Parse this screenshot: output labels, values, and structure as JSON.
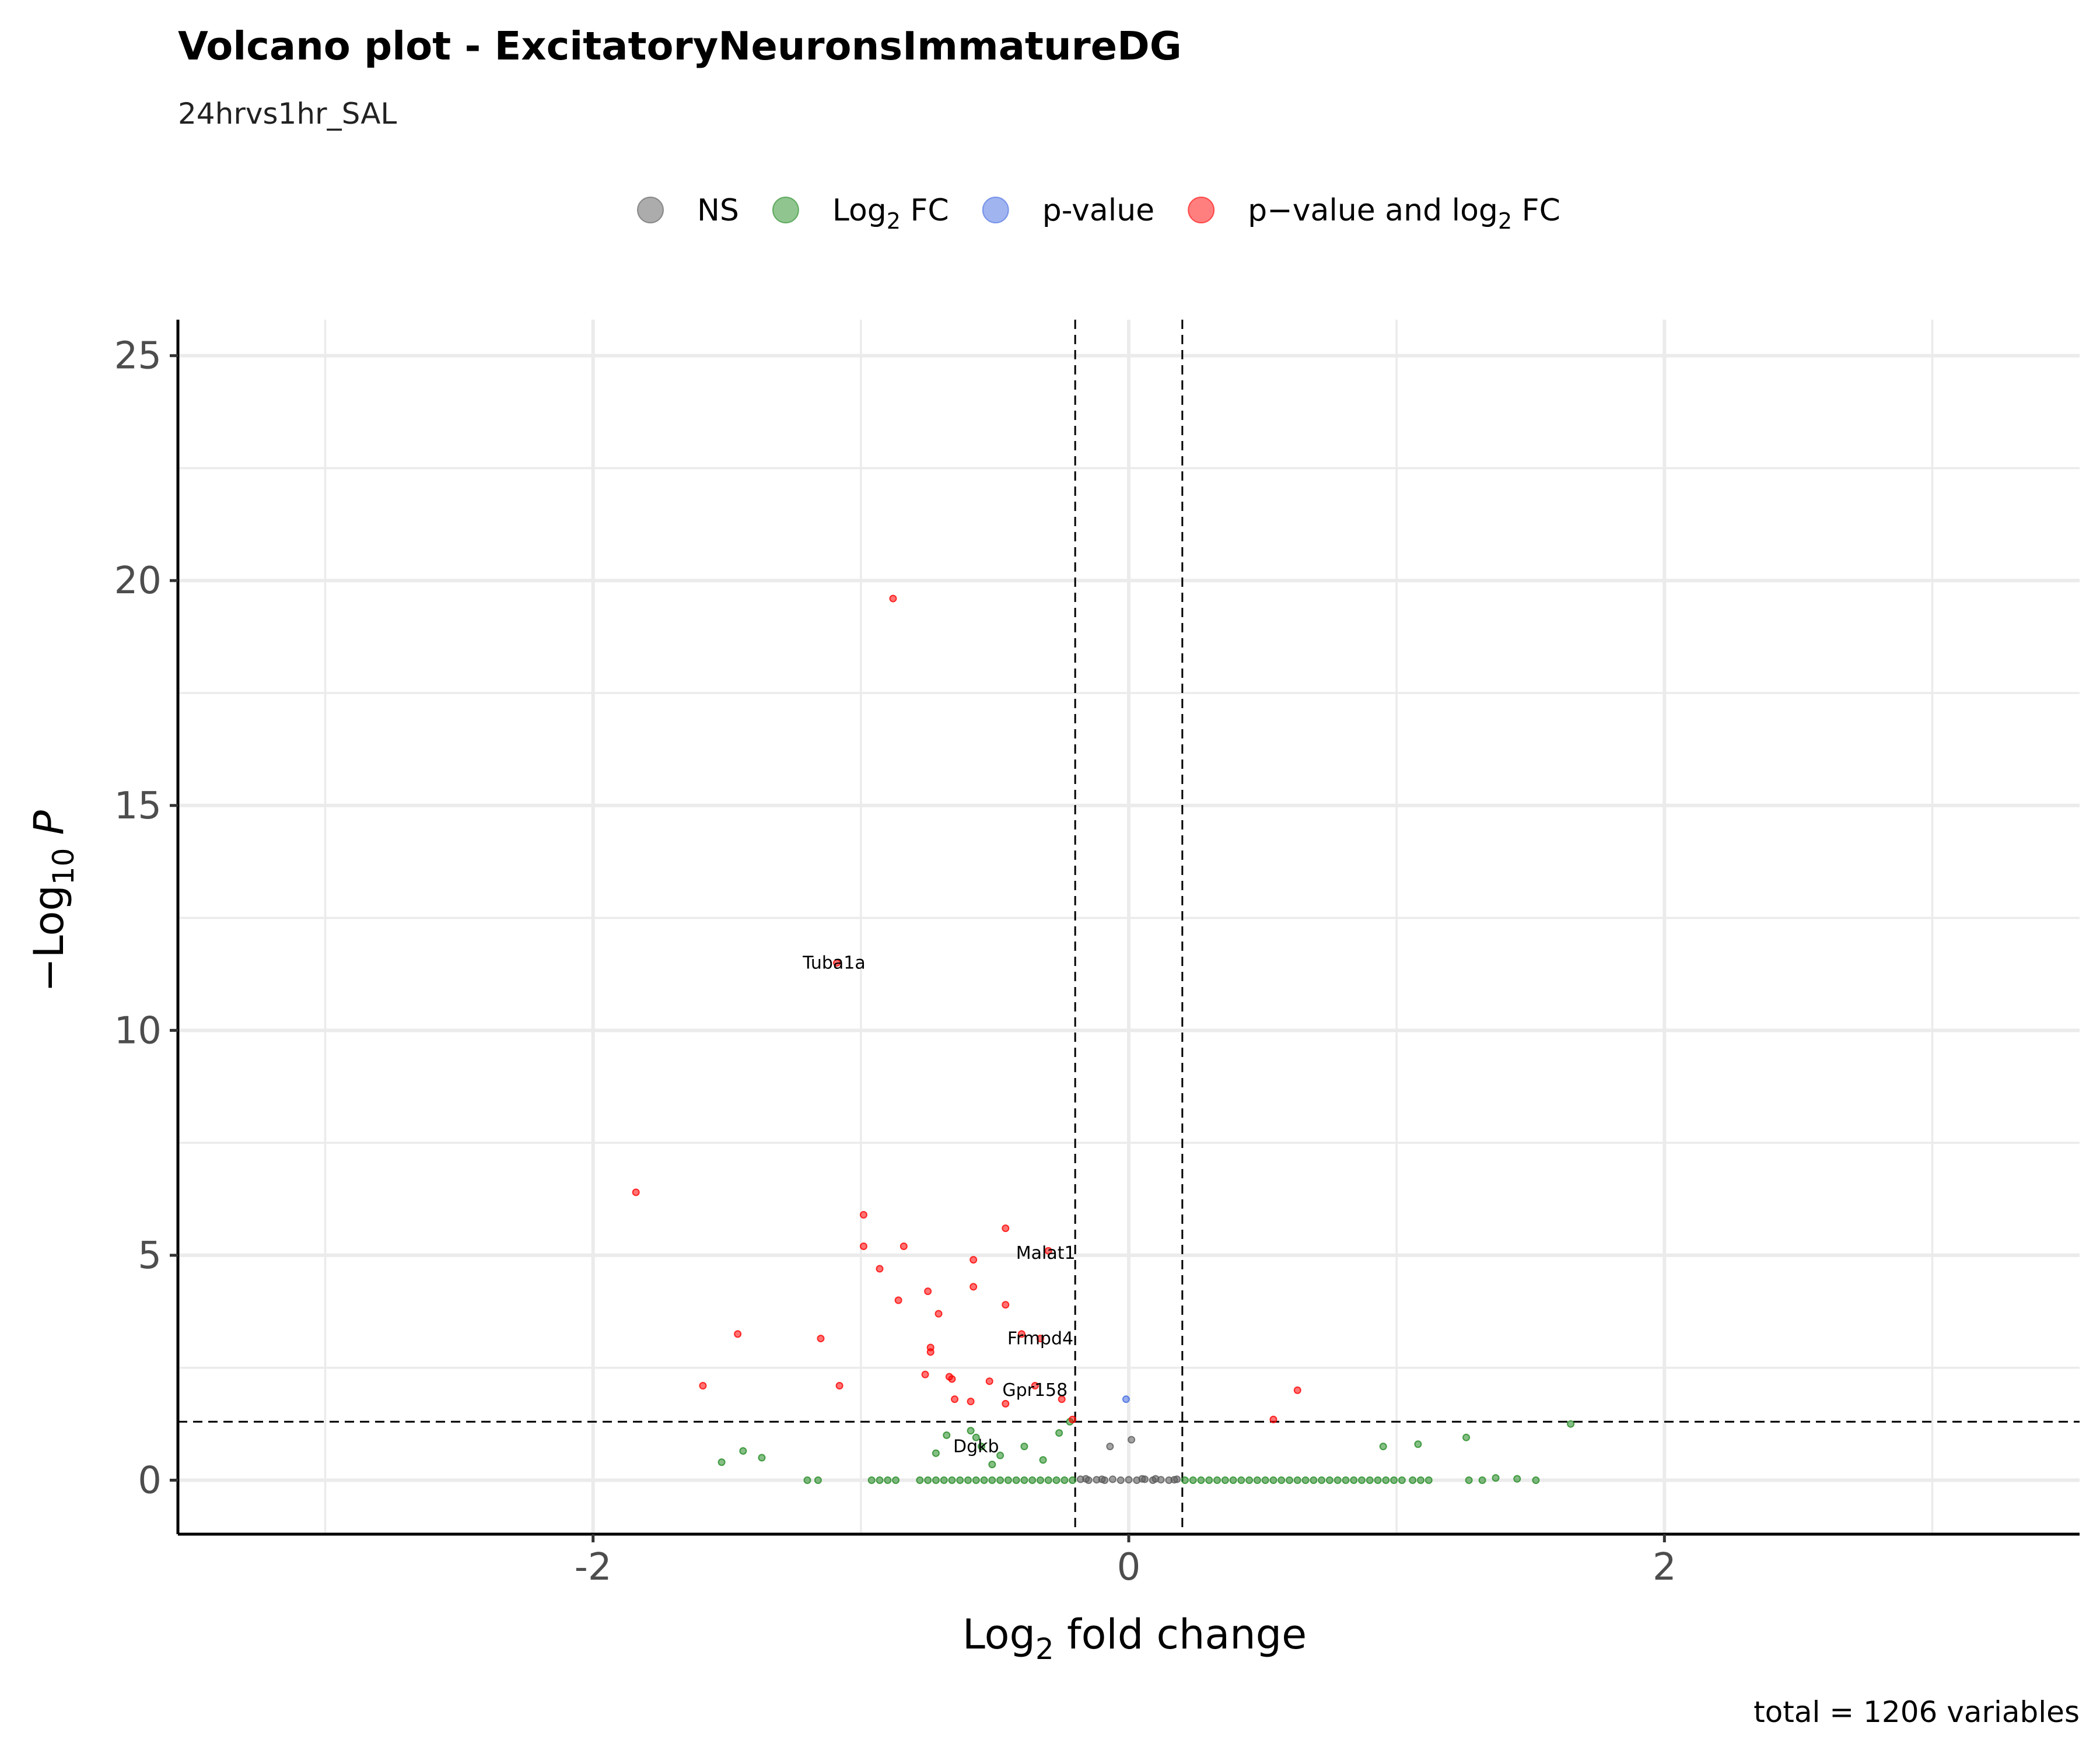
{
  "colors": {
    "NS": "#5a5a5a",
    "Log2FC": "#228b22",
    "pvalue": "#4169e1",
    "both": "#ff0000"
  },
  "chart_data": {
    "type": "scatter",
    "title": "Volcano plot - ExcitatoryNeuronsImmatureDG",
    "subtitle": "24hrvs1hr_SAL",
    "caption": "total = 1206 variables",
    "xlabel": {
      "main": "Log",
      "sub": "2",
      "rest": " fold change"
    },
    "ylabel": {
      "pre": "−Log",
      "sub": "10",
      "italic": "P"
    },
    "xlim": [
      -3.55,
      3.55
    ],
    "ylim": [
      -1.2,
      25.8
    ],
    "x_ticks": [
      -2,
      0,
      2
    ],
    "x_tick_labels": [
      "-2",
      "0",
      "2"
    ],
    "x_minor_ticks": [
      -3,
      -1,
      1,
      3
    ],
    "y_ticks": [
      0,
      5,
      10,
      15,
      20,
      25
    ],
    "y_tick_labels": [
      "0",
      "5",
      "10",
      "15",
      "20",
      "25"
    ],
    "y_minor_ticks": [
      2.5,
      7.5,
      12.5,
      17.5,
      22.5
    ],
    "grid": true,
    "legend_position": "top",
    "cutoffs": {
      "fc": 0.2,
      "pvalue_log10": 1.3
    },
    "legend": [
      {
        "key": "NS",
        "parts": [
          {
            "text": "NS"
          }
        ]
      },
      {
        "key": "Log2FC",
        "parts": [
          {
            "text": "Log"
          },
          {
            "text": "2",
            "sub": true
          },
          {
            "text": " FC"
          }
        ]
      },
      {
        "key": "pvalue",
        "parts": [
          {
            "text": "p-value"
          }
        ]
      },
      {
        "key": "both",
        "parts": [
          {
            "text": "p−value and log"
          },
          {
            "text": "2",
            "sub": true
          },
          {
            "text": " FC"
          }
        ]
      }
    ],
    "series": [
      {
        "key": "both",
        "points": [
          [
            -0.88,
            19.6
          ],
          [
            -1.84,
            6.4
          ],
          [
            -1.09,
            11.5
          ],
          [
            -0.99,
            5.9
          ],
          [
            -0.99,
            5.2
          ],
          [
            -0.84,
            5.2
          ],
          [
            -0.46,
            5.6
          ],
          [
            -0.93,
            4.7
          ],
          [
            -0.58,
            4.9
          ],
          [
            -0.3,
            5.1
          ],
          [
            -0.75,
            4.2
          ],
          [
            -0.58,
            4.3
          ],
          [
            -0.86,
            4.0
          ],
          [
            -0.46,
            3.9
          ],
          [
            -0.71,
            3.7
          ],
          [
            -1.46,
            3.25
          ],
          [
            -1.15,
            3.15
          ],
          [
            -0.4,
            3.25
          ],
          [
            -0.33,
            3.15
          ],
          [
            -0.74,
            2.95
          ],
          [
            -0.74,
            2.85
          ],
          [
            -1.59,
            2.1
          ],
          [
            -1.08,
            2.1
          ],
          [
            -0.76,
            2.35
          ],
          [
            -0.67,
            2.3
          ],
          [
            -0.66,
            2.25
          ],
          [
            -0.52,
            2.2
          ],
          [
            -0.35,
            2.1
          ],
          [
            -0.65,
            1.8
          ],
          [
            -0.59,
            1.75
          ],
          [
            -0.46,
            1.7
          ],
          [
            -0.25,
            1.8
          ],
          [
            0.63,
            2.0
          ],
          [
            0.54,
            1.35
          ],
          [
            -0.21,
            1.35
          ]
        ]
      },
      {
        "key": "pvalue",
        "points": [
          [
            -0.01,
            1.8
          ]
        ]
      },
      {
        "key": "NS",
        "points": [
          [
            -0.07,
            0.75
          ],
          [
            0.01,
            0.9
          ],
          [
            -0.18,
            0.02
          ],
          [
            -0.15,
            0.0
          ],
          [
            -0.12,
            0.01
          ],
          [
            -0.09,
            0.0
          ],
          [
            -0.06,
            0.02
          ],
          [
            -0.03,
            0.0
          ],
          [
            0.0,
            0.01
          ],
          [
            0.03,
            0.0
          ],
          [
            0.06,
            0.02
          ],
          [
            0.09,
            0.0
          ],
          [
            0.12,
            0.01
          ],
          [
            0.15,
            0.0
          ],
          [
            0.18,
            0.02
          ],
          [
            -0.16,
            0.03
          ],
          [
            -0.1,
            0.02
          ],
          [
            0.05,
            0.03
          ],
          [
            0.1,
            0.03
          ],
          [
            0.17,
            0.01
          ]
        ]
      },
      {
        "key": "Log2FC",
        "points": [
          [
            1.65,
            1.25
          ],
          [
            1.26,
            0.95
          ],
          [
            1.08,
            0.8
          ],
          [
            0.95,
            0.75
          ],
          [
            -0.22,
            1.3
          ],
          [
            -0.26,
            1.05
          ],
          [
            -0.59,
            1.1
          ],
          [
            -0.68,
            1.0
          ],
          [
            -0.57,
            0.95
          ],
          [
            -0.39,
            0.75
          ],
          [
            -0.55,
            0.75
          ],
          [
            -0.72,
            0.6
          ],
          [
            -0.48,
            0.55
          ],
          [
            -0.32,
            0.45
          ],
          [
            -0.51,
            0.35
          ],
          [
            -1.37,
            0.5
          ],
          [
            -1.44,
            0.65
          ],
          [
            -1.52,
            0.4
          ],
          [
            -1.2,
            0.0
          ],
          [
            -1.16,
            0.0
          ],
          [
            -0.96,
            0.0
          ],
          [
            -0.93,
            0.0
          ],
          [
            -0.9,
            0.0
          ],
          [
            -0.87,
            0.0
          ],
          [
            -0.78,
            0.0
          ],
          [
            -0.75,
            0.0
          ],
          [
            -0.72,
            0.0
          ],
          [
            -0.69,
            0.0
          ],
          [
            -0.66,
            0.0
          ],
          [
            -0.63,
            0.0
          ],
          [
            -0.6,
            0.0
          ],
          [
            -0.57,
            0.0
          ],
          [
            -0.54,
            0.0
          ],
          [
            -0.51,
            0.0
          ],
          [
            -0.48,
            0.0
          ],
          [
            -0.45,
            0.0
          ],
          [
            -0.42,
            0.0
          ],
          [
            -0.39,
            0.0
          ],
          [
            -0.36,
            0.0
          ],
          [
            -0.33,
            0.0
          ],
          [
            -0.3,
            0.0
          ],
          [
            -0.27,
            0.0
          ],
          [
            -0.24,
            0.0
          ],
          [
            -0.21,
            0.0
          ],
          [
            0.21,
            0.0
          ],
          [
            0.24,
            0.0
          ],
          [
            0.27,
            0.0
          ],
          [
            0.3,
            0.0
          ],
          [
            0.33,
            0.0
          ],
          [
            0.36,
            0.0
          ],
          [
            0.39,
            0.0
          ],
          [
            0.42,
            0.0
          ],
          [
            0.45,
            0.0
          ],
          [
            0.48,
            0.0
          ],
          [
            0.51,
            0.0
          ],
          [
            0.54,
            0.0
          ],
          [
            0.57,
            0.0
          ],
          [
            0.6,
            0.0
          ],
          [
            0.63,
            0.0
          ],
          [
            0.66,
            0.0
          ],
          [
            0.69,
            0.0
          ],
          [
            0.72,
            0.0
          ],
          [
            0.75,
            0.0
          ],
          [
            0.78,
            0.0
          ],
          [
            0.81,
            0.0
          ],
          [
            0.84,
            0.0
          ],
          [
            0.87,
            0.0
          ],
          [
            0.9,
            0.0
          ],
          [
            0.93,
            0.0
          ],
          [
            0.96,
            0.0
          ],
          [
            0.99,
            0.0
          ],
          [
            1.02,
            0.0
          ],
          [
            1.06,
            0.0
          ],
          [
            1.09,
            0.0
          ],
          [
            1.12,
            0.0
          ],
          [
            1.27,
            0.0
          ],
          [
            1.32,
            0.0
          ],
          [
            1.37,
            0.05
          ],
          [
            1.45,
            0.03
          ],
          [
            1.52,
            0.0
          ]
        ]
      }
    ],
    "labels": [
      {
        "text": "Tuba1a",
        "x": -1.1,
        "y": 11.5
      },
      {
        "text": "Malat1",
        "x": -0.31,
        "y": 5.05
      },
      {
        "text": "Frmpd4",
        "x": -0.33,
        "y": 3.15
      },
      {
        "text": "Gpr158",
        "x": -0.35,
        "y": 2.0
      },
      {
        "text": "Dgkb",
        "x": -0.57,
        "y": 0.75
      }
    ]
  }
}
